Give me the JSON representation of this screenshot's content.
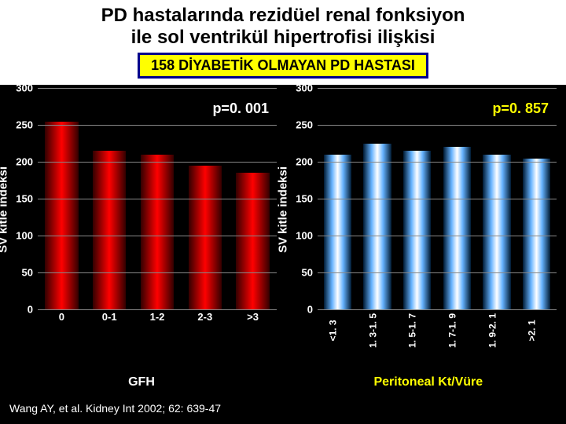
{
  "title_line1": "PD hastalarında rezidüel renal fonksiyon",
  "title_line2": "ile sol ventrikül hipertrofisi ilişkisi",
  "subtitle": "158 DİYABETİK OLMAYAN PD HASTASI",
  "citation": "Wang AY, et al. Kidney Int 2002; 62: 639-47",
  "left_chart": {
    "type": "bar",
    "ylabel": "SV kitle indeksi",
    "xlabel": "GFH",
    "pvalue": "p=0. 001",
    "pvalue_color": "#ffffff",
    "ylim": [
      0,
      300
    ],
    "ytick_step": 50,
    "categories": [
      "0",
      "0-1",
      "1-2",
      "2-3",
      ">3"
    ],
    "values": [
      255,
      215,
      210,
      195,
      185
    ],
    "bar_gradient": [
      "#330000",
      "#ff0000",
      "#330000"
    ],
    "grid_color": "#888888",
    "text_color": "#ffffff"
  },
  "right_chart": {
    "type": "bar",
    "ylabel": "SV kitle indeksi",
    "xlabel": "Peritoneal Kt/Vüre",
    "xlabel_color": "#ffff00",
    "pvalue": "p=0. 857",
    "pvalue_color": "#ffff00",
    "ylim": [
      0,
      300
    ],
    "ytick_step": 50,
    "categories": [
      "<1. 3",
      "1. 3-1. 5",
      "1. 5-1. 7",
      "1. 7-1. 9",
      "1. 9-2. 1",
      ">2. 1"
    ],
    "values": [
      210,
      225,
      215,
      220,
      210,
      205
    ],
    "bar_gradient": [
      "#001a33",
      "#66b3ff",
      "#ffffff",
      "#66b3ff",
      "#001a33"
    ],
    "grid_color": "#888888",
    "text_color": "#ffffff"
  }
}
